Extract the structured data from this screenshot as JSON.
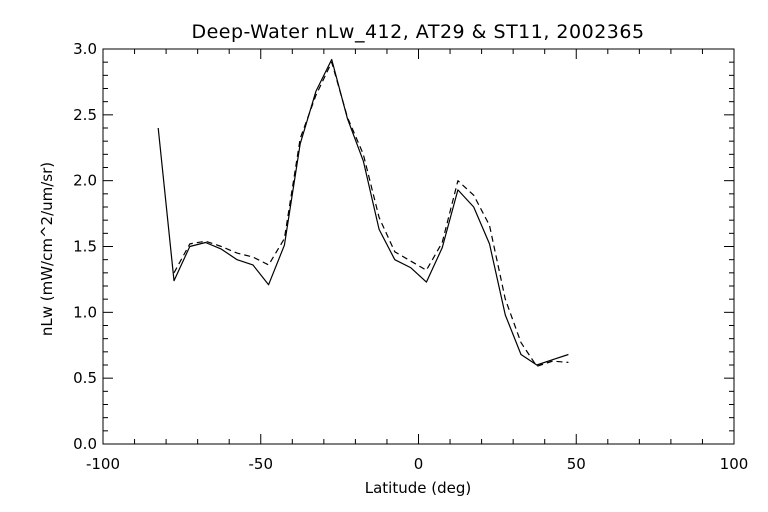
{
  "chart_data": {
    "type": "line",
    "title": "Deep-Water nLw_412, AT29 & ST11, 2002365",
    "xlabel": "Latitude (deg)",
    "ylabel": "nLw (mW/cm^2/um/sr)",
    "xlim": [
      -100,
      100
    ],
    "ylim": [
      0.0,
      3.0
    ],
    "xticks": [
      "-100",
      "-50",
      "0",
      "50",
      "100"
    ],
    "yticks": [
      "0.0",
      "0.5",
      "1.0",
      "1.5",
      "2.0",
      "2.5",
      "3.0"
    ],
    "grid": false,
    "series": [
      {
        "style": "solid",
        "color": "#000000",
        "x": [
          -82.5,
          -77.5,
          -72.5,
          -67.5,
          -62.5,
          -57.5,
          -52.5,
          -47.5,
          -42.5,
          -37.5,
          -32.5,
          -27.5,
          -22.5,
          -17.5,
          -12.5,
          -7.5,
          -2.5,
          2.5,
          7.5,
          12.5,
          17.5,
          22.5,
          27.5,
          32.5,
          37.5,
          42.5,
          47.5
        ],
        "y": [
          2.4,
          1.24,
          1.5,
          1.53,
          1.48,
          1.4,
          1.36,
          1.21,
          1.51,
          2.28,
          2.68,
          2.92,
          2.47,
          2.15,
          1.63,
          1.4,
          1.34,
          1.23,
          1.49,
          1.93,
          1.8,
          1.52,
          0.98,
          0.68,
          0.6,
          0.64,
          0.68
        ]
      },
      {
        "style": "dashed",
        "color": "#000000",
        "x": [
          -77.5,
          -72.5,
          -67.5,
          -62.5,
          -57.5,
          -52.5,
          -47.5,
          -42.5,
          -37.5,
          -32.5,
          -27.5,
          -22.5,
          -17.5,
          -12.5,
          -7.5,
          -2.5,
          2.5,
          7.5,
          12.5,
          17.5,
          22.5,
          27.5,
          32.5,
          37.5,
          42.5,
          47.5
        ],
        "y": [
          1.3,
          1.52,
          1.54,
          1.5,
          1.45,
          1.42,
          1.36,
          1.56,
          2.32,
          2.65,
          2.9,
          2.48,
          2.2,
          1.72,
          1.46,
          1.39,
          1.32,
          1.53,
          2.0,
          1.89,
          1.66,
          1.1,
          0.77,
          0.59,
          0.63,
          0.62
        ]
      }
    ]
  }
}
